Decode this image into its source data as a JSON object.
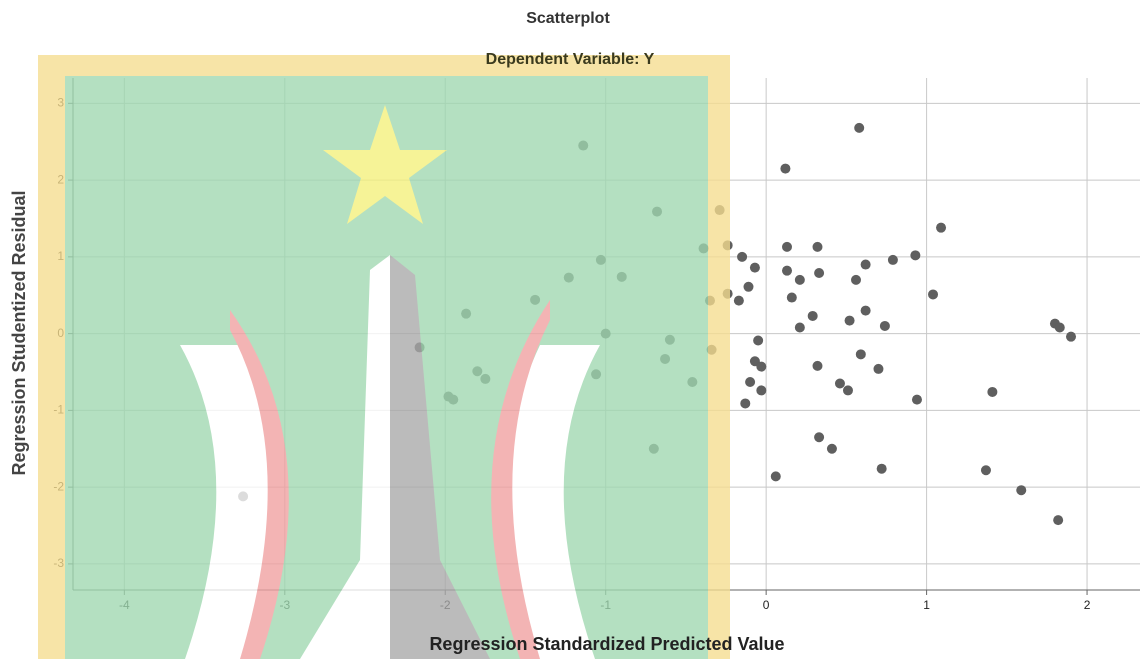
{
  "chart_data": {
    "type": "scatter",
    "title": "Scatterplot",
    "subtitle": "Dependent Variable: Y",
    "x_label": "Regression Standardized Predicted Value",
    "y_label": "Regression Studentized Residual",
    "x": [
      -1.14,
      0.58,
      0.12,
      -0.68,
      -0.29,
      1.09,
      -0.39,
      -0.24,
      0.13,
      0.32,
      -0.15,
      0.93,
      -1.03,
      -0.07,
      0.62,
      0.79,
      0.13,
      0.33,
      -1.23,
      -0.9,
      0.21,
      0.56,
      -0.11,
      -0.24,
      0.16,
      -0.17,
      -0.35,
      -1.44,
      1.04,
      0.62,
      0.29,
      -1.87,
      0.52,
      0.74,
      1.8,
      1.83,
      1.9,
      0.21,
      -1.0,
      -0.6,
      -0.05,
      -2.16,
      -0.34,
      0.59,
      -0.63,
      -0.07,
      -0.03,
      0.32,
      0.7,
      -1.8,
      -1.06,
      -1.75,
      -0.1,
      -0.46,
      0.46,
      0.51,
      -0.03,
      1.41,
      -1.98,
      -1.95,
      0.94,
      -0.13,
      0.33,
      0.41,
      -0.7,
      0.72,
      1.37,
      0.06,
      1.59,
      1.82,
      -3.26
    ],
    "values": [
      2.45,
      2.68,
      2.15,
      1.59,
      1.61,
      1.38,
      1.11,
      1.15,
      1.13,
      1.13,
      1.0,
      1.02,
      0.96,
      0.86,
      0.9,
      0.96,
      0.82,
      0.79,
      0.73,
      0.74,
      0.7,
      0.7,
      0.61,
      0.52,
      0.47,
      0.43,
      0.43,
      0.44,
      0.51,
      0.3,
      0.23,
      0.26,
      0.17,
      0.1,
      0.13,
      0.08,
      -0.04,
      0.08,
      0.0,
      -0.08,
      -0.09,
      -0.18,
      -0.21,
      -0.27,
      -0.33,
      -0.36,
      -0.43,
      -0.42,
      -0.46,
      -0.49,
      -0.53,
      -0.59,
      -0.63,
      -0.63,
      -0.65,
      -0.74,
      -0.74,
      -0.76,
      -0.82,
      -0.86,
      -0.86,
      -0.91,
      -1.35,
      -1.5,
      -1.5,
      -1.76,
      -1.78,
      -1.86,
      -2.04,
      -2.43,
      -2.12
    ],
    "color": "#5f5f5f",
    "xlim": [
      -4.32,
      2.33
    ],
    "xticks": [
      -4,
      -3,
      -2,
      -1,
      0,
      1,
      2
    ],
    "ylim": [
      -3.34,
      3.33
    ],
    "yticks": [
      -3,
      -2,
      -1,
      0,
      1,
      2,
      3
    ],
    "grid": true
  }
}
